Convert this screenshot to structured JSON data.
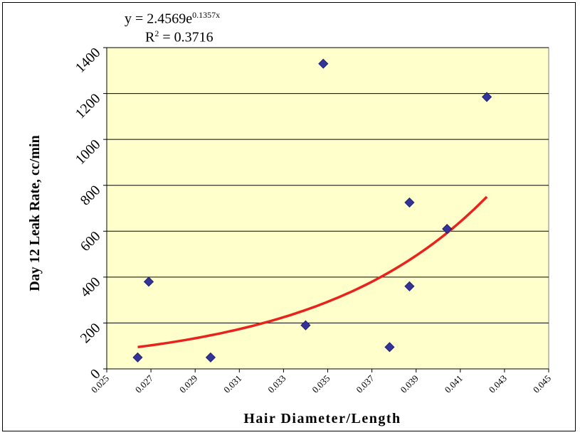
{
  "chart_data": {
    "type": "scatter",
    "title": "",
    "xlabel": "Hair Diameter/Length",
    "ylabel": "Day 12 Leak Rate, cc/min",
    "xlim": [
      0.025,
      0.045
    ],
    "ylim": [
      0,
      1400
    ],
    "x_ticks": [
      "0.025",
      "0.027",
      "0.029",
      "0.031",
      "0.033",
      "0.035",
      "0.037",
      "0.039",
      "0.041",
      "0.043",
      "0.045"
    ],
    "y_ticks": [
      "0",
      "200",
      "400",
      "600",
      "800",
      "1000",
      "1200",
      "1400"
    ],
    "grid": "horizontal",
    "plot_background": "#FFFFCC",
    "marker_color": "#33339A",
    "trend_color": "#E8231E",
    "points": [
      {
        "x": 0.0264,
        "y": 50
      },
      {
        "x": 0.0269,
        "y": 380
      },
      {
        "x": 0.0297,
        "y": 50
      },
      {
        "x": 0.034,
        "y": 190
      },
      {
        "x": 0.0348,
        "y": 1330
      },
      {
        "x": 0.0378,
        "y": 95
      },
      {
        "x": 0.0387,
        "y": 360
      },
      {
        "x": 0.0387,
        "y": 725
      },
      {
        "x": 0.0404,
        "y": 610
      },
      {
        "x": 0.0422,
        "y": 1185
      }
    ],
    "trendline": {
      "type": "exponential",
      "a": 2.4569,
      "b": 0.1357,
      "x_from": 0.0264,
      "x_to": 0.0422
    },
    "equation": {
      "base": "y = 2.4569e",
      "exponent": "0.1357x",
      "r2_prefix": "R",
      "r2_exp": "2",
      "r2_value": " = 0.3716"
    }
  }
}
